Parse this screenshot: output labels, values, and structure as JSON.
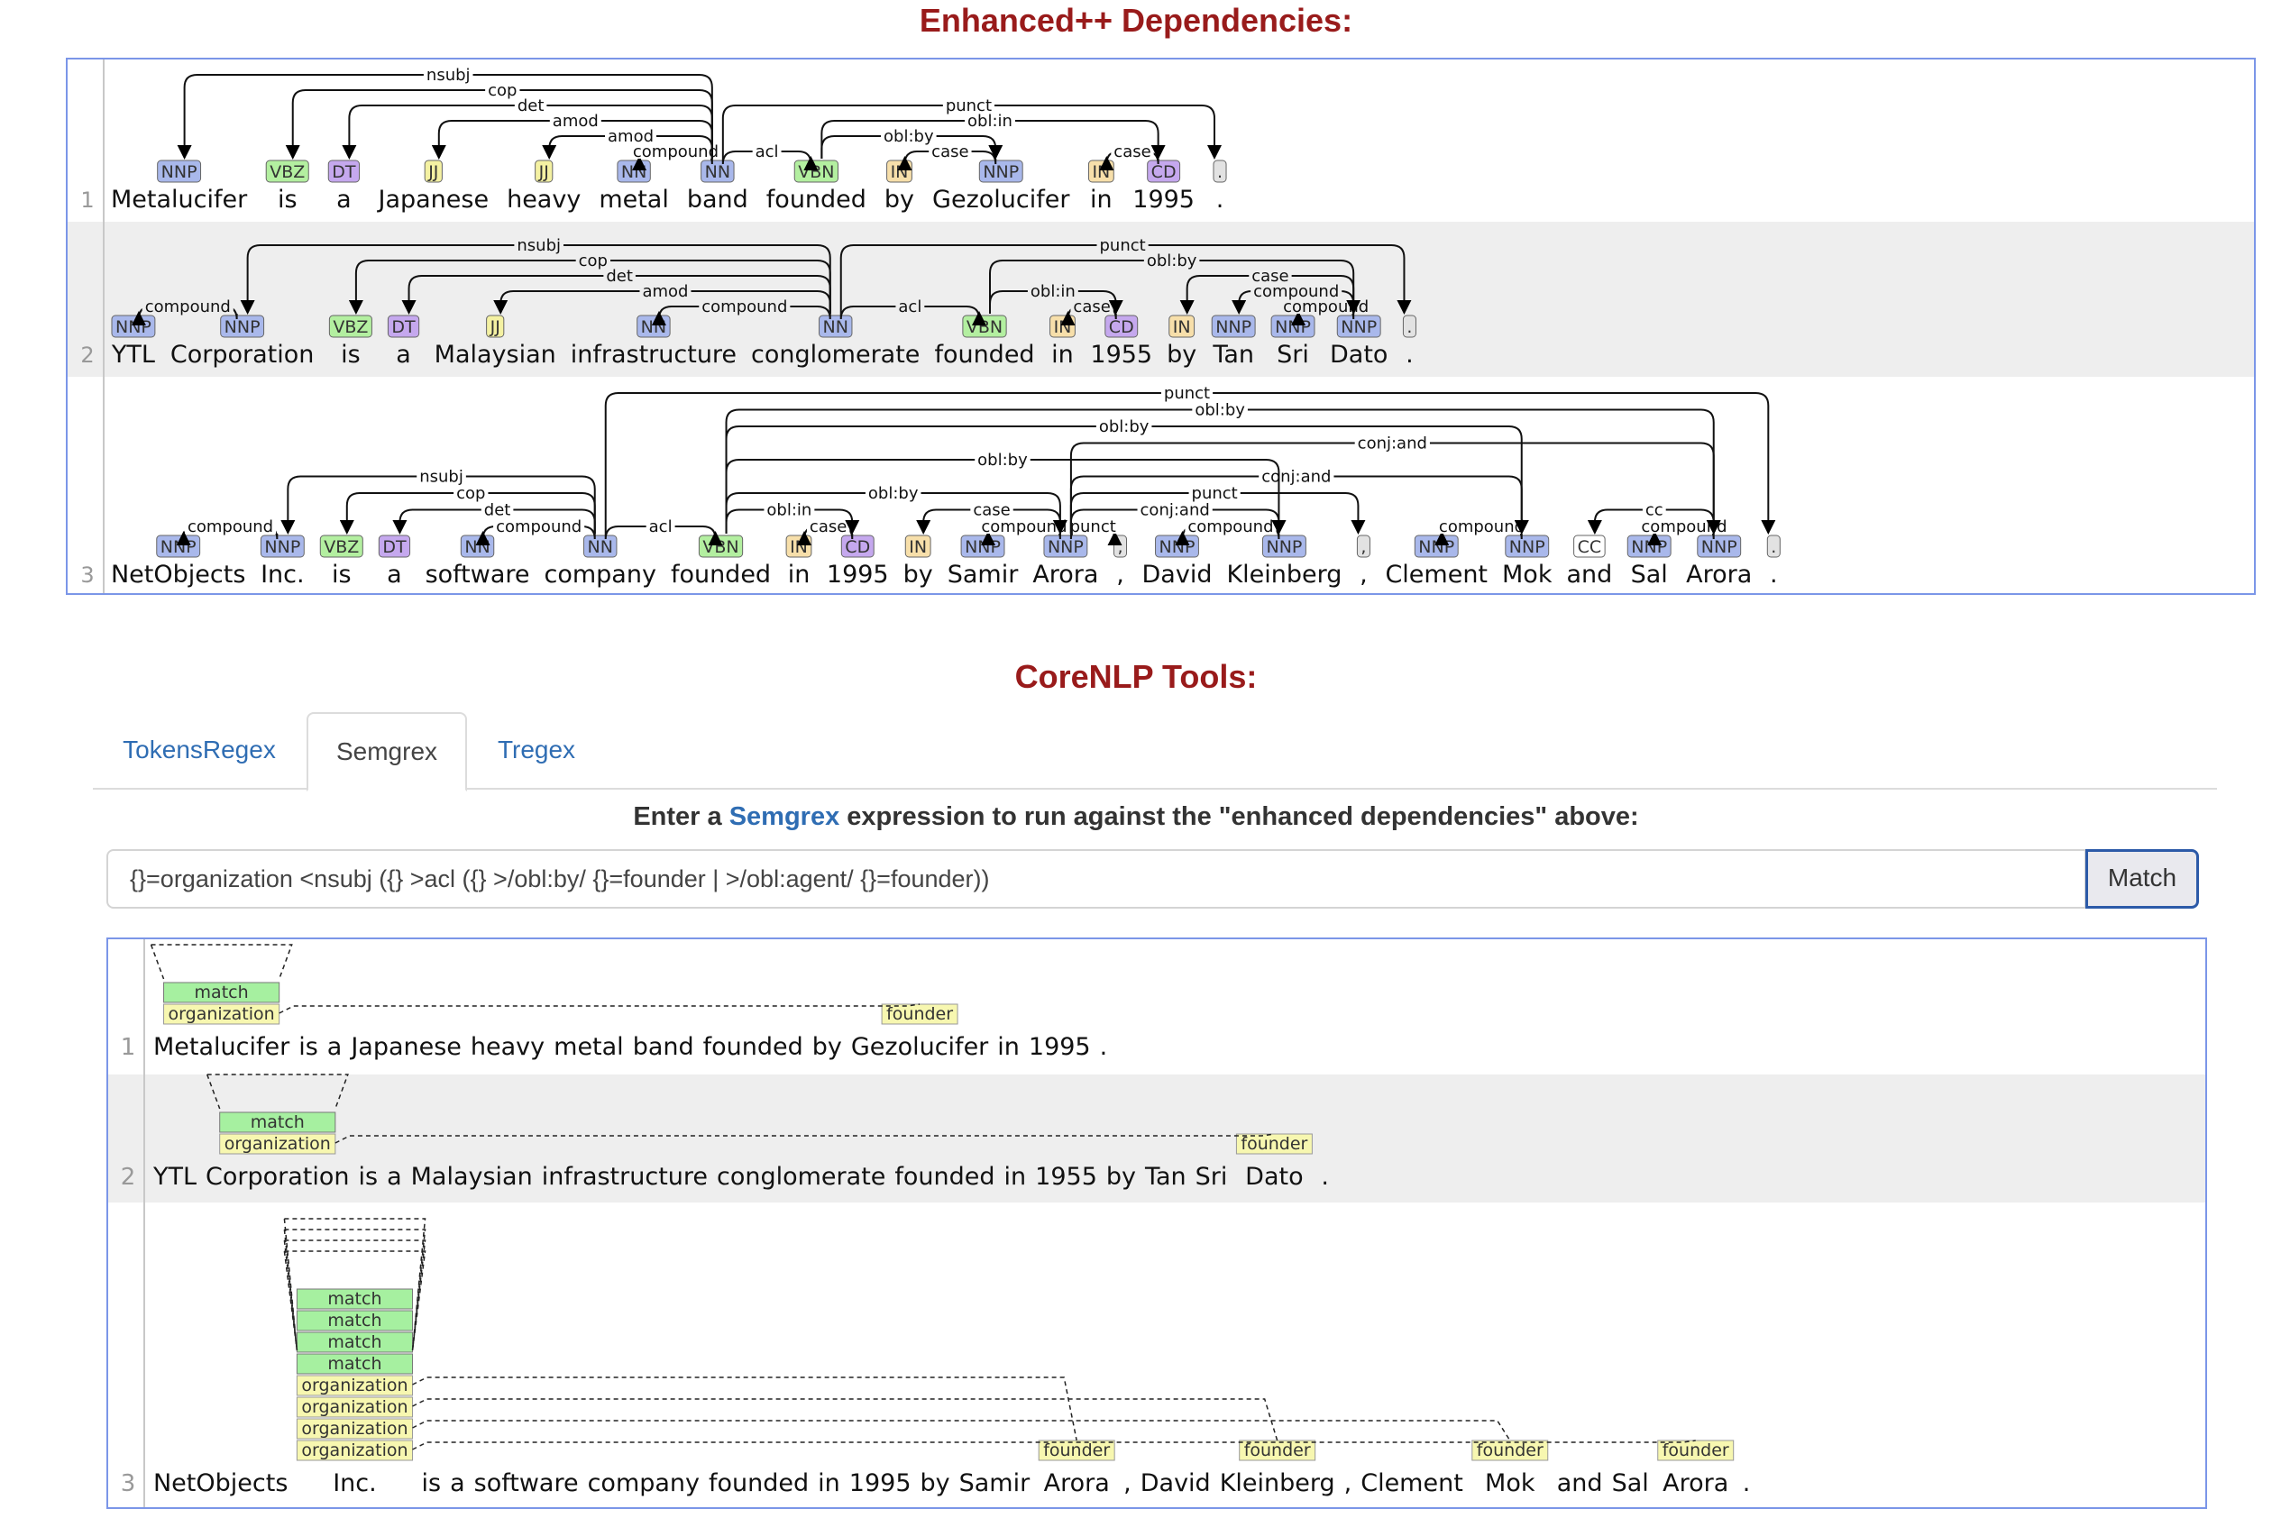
{
  "headings": {
    "deps": "Enhanced++ Dependencies:",
    "tools": "CoreNLP Tools:"
  },
  "tabs": [
    "TokensRegex",
    "Semgrex",
    "Tregex"
  ],
  "active_tab": "Semgrex",
  "prompt": {
    "before": "Enter a ",
    "link": "Semgrex",
    "after": " expression to run against the \"enhanced dependencies\" above:"
  },
  "query": "{}=organization <nsubj ({} >acl ({} >/obl:by/ {}=founder | >/obl:agent/ {}=founder))",
  "match_button": "Match",
  "colors": {
    "NNP": "#a9b8eb",
    "NN": "#a9b8eb",
    "VBZ": "#b3efa0",
    "VBN": "#b3efa0",
    "DT": "#c5a8ee",
    "CD": "#c5a8ee",
    "JJ": "#f4f1a2",
    "IN": "#f7dfaa",
    "CC": "#ffffff",
    "PUNCT": "#e2e2e2",
    "match": "#a6f0a0",
    "label": "#f7f7b0",
    "heading": "#991b1b",
    "link": "#2f6db3",
    "panel_border": "#7b96e8",
    "row_alt": "#eeeeee"
  },
  "dependencies": [
    {
      "num": "1",
      "tokens": [
        {
          "w": "Metalucifer",
          "t": "NNP"
        },
        {
          "w": "is",
          "t": "VBZ"
        },
        {
          "w": "a",
          "t": "DT"
        },
        {
          "w": "Japanese",
          "t": "JJ"
        },
        {
          "w": "heavy",
          "t": "JJ"
        },
        {
          "w": "metal",
          "t": "NN"
        },
        {
          "w": "band",
          "t": "NN"
        },
        {
          "w": "founded",
          "t": "VBN"
        },
        {
          "w": "by",
          "t": "IN"
        },
        {
          "w": "Gezolucifer",
          "t": "NNP"
        },
        {
          "w": "in",
          "t": "IN"
        },
        {
          "w": "1995",
          "t": "CD"
        },
        {
          "w": ".",
          "t": "."
        }
      ],
      "arcs": [
        {
          "from": 6,
          "to": 0,
          "label": "nsubj"
        },
        {
          "from": 6,
          "to": 1,
          "label": "cop"
        },
        {
          "from": 6,
          "to": 2,
          "label": "det"
        },
        {
          "from": 6,
          "to": 3,
          "label": "amod"
        },
        {
          "from": 6,
          "to": 4,
          "label": "amod"
        },
        {
          "from": 6,
          "to": 5,
          "label": "compound"
        },
        {
          "from": 6,
          "to": 7,
          "label": "acl"
        },
        {
          "from": 6,
          "to": 12,
          "label": "punct"
        },
        {
          "from": 7,
          "to": 9,
          "label": "obl:by"
        },
        {
          "from": 7,
          "to": 11,
          "label": "obl:in"
        },
        {
          "from": 9,
          "to": 8,
          "label": "case"
        },
        {
          "from": 11,
          "to": 10,
          "label": "case"
        }
      ]
    },
    {
      "num": "2",
      "tokens": [
        {
          "w": "YTL",
          "t": "NNP"
        },
        {
          "w": "Corporation",
          "t": "NNP"
        },
        {
          "w": "is",
          "t": "VBZ"
        },
        {
          "w": "a",
          "t": "DT"
        },
        {
          "w": "Malaysian",
          "t": "JJ"
        },
        {
          "w": "infrastructure",
          "t": "NN"
        },
        {
          "w": "conglomerate",
          "t": "NN"
        },
        {
          "w": "founded",
          "t": "VBN"
        },
        {
          "w": "in",
          "t": "IN"
        },
        {
          "w": "1955",
          "t": "CD"
        },
        {
          "w": "by",
          "t": "IN"
        },
        {
          "w": "Tan",
          "t": "NNP"
        },
        {
          "w": "Sri",
          "t": "NNP"
        },
        {
          "w": "Dato",
          "t": "NNP"
        },
        {
          "w": ".",
          "t": "."
        }
      ],
      "arcs": [
        {
          "from": 1,
          "to": 0,
          "label": "compound"
        },
        {
          "from": 6,
          "to": 1,
          "label": "nsubj"
        },
        {
          "from": 6,
          "to": 2,
          "label": "cop"
        },
        {
          "from": 6,
          "to": 3,
          "label": "det"
        },
        {
          "from": 6,
          "to": 4,
          "label": "amod"
        },
        {
          "from": 6,
          "to": 5,
          "label": "compound"
        },
        {
          "from": 6,
          "to": 7,
          "label": "acl"
        },
        {
          "from": 6,
          "to": 14,
          "label": "punct"
        },
        {
          "from": 7,
          "to": 9,
          "label": "obl:in"
        },
        {
          "from": 7,
          "to": 13,
          "label": "obl:by"
        },
        {
          "from": 9,
          "to": 8,
          "label": "case"
        },
        {
          "from": 13,
          "to": 10,
          "label": "case"
        },
        {
          "from": 13,
          "to": 11,
          "label": "compound"
        },
        {
          "from": 13,
          "to": 12,
          "label": "compound"
        }
      ]
    },
    {
      "num": "3",
      "tokens": [
        {
          "w": "NetObjects",
          "t": "NNP"
        },
        {
          "w": "Inc.",
          "t": "NNP"
        },
        {
          "w": "is",
          "t": "VBZ"
        },
        {
          "w": "a",
          "t": "DT"
        },
        {
          "w": "software",
          "t": "NN"
        },
        {
          "w": "company",
          "t": "NN"
        },
        {
          "w": "founded",
          "t": "VBN"
        },
        {
          "w": "in",
          "t": "IN"
        },
        {
          "w": "1995",
          "t": "CD"
        },
        {
          "w": "by",
          "t": "IN"
        },
        {
          "w": "Samir",
          "t": "NNP"
        },
        {
          "w": "Arora",
          "t": "NNP"
        },
        {
          "w": ",",
          "t": ","
        },
        {
          "w": "David",
          "t": "NNP"
        },
        {
          "w": "Kleinberg",
          "t": "NNP"
        },
        {
          "w": ",",
          "t": ","
        },
        {
          "w": "Clement",
          "t": "NNP"
        },
        {
          "w": "Mok",
          "t": "NNP"
        },
        {
          "w": "and",
          "t": "CC"
        },
        {
          "w": "Sal",
          "t": "NNP"
        },
        {
          "w": "Arora",
          "t": "NNP"
        },
        {
          "w": ".",
          "t": "."
        }
      ],
      "arcs": [
        {
          "from": 1,
          "to": 0,
          "label": "compound"
        },
        {
          "from": 5,
          "to": 1,
          "label": "nsubj"
        },
        {
          "from": 5,
          "to": 2,
          "label": "cop"
        },
        {
          "from": 5,
          "to": 3,
          "label": "det"
        },
        {
          "from": 5,
          "to": 4,
          "label": "compound"
        },
        {
          "from": 5,
          "to": 6,
          "label": "acl"
        },
        {
          "from": 5,
          "to": 21,
          "label": "punct"
        },
        {
          "from": 6,
          "to": 8,
          "label": "obl:in"
        },
        {
          "from": 8,
          "to": 7,
          "label": "case"
        },
        {
          "from": 6,
          "to": 11,
          "label": "obl:by"
        },
        {
          "from": 6,
          "to": 14,
          "label": "obl:by"
        },
        {
          "from": 6,
          "to": 17,
          "label": "obl:by"
        },
        {
          "from": 6,
          "to": 20,
          "label": "obl:by"
        },
        {
          "from": 11,
          "to": 9,
          "label": "case"
        },
        {
          "from": 11,
          "to": 10,
          "label": "compound"
        },
        {
          "from": 11,
          "to": 12,
          "label": "punct"
        },
        {
          "from": 11,
          "to": 14,
          "label": "conj:and"
        },
        {
          "from": 11,
          "to": 15,
          "label": "punct"
        },
        {
          "from": 11,
          "to": 17,
          "label": "conj:and"
        },
        {
          "from": 11,
          "to": 20,
          "label": "conj:and"
        },
        {
          "from": 14,
          "to": 13,
          "label": "compound"
        },
        {
          "from": 17,
          "to": 16,
          "label": "compound"
        },
        {
          "from": 20,
          "to": 18,
          "label": "cc"
        },
        {
          "from": 20,
          "to": 19,
          "label": "compound"
        }
      ]
    }
  ],
  "semgrex_results": [
    {
      "num": "1",
      "tokens": [
        "Metalucifer",
        "is",
        "a",
        "Japanese",
        "heavy",
        "metal",
        "band",
        "founded",
        "by",
        "Gezolucifer",
        "in",
        "1995",
        "."
      ],
      "org": 0,
      "matches": 1,
      "founders": [
        9
      ],
      "match_label": "match",
      "org_label": "organization",
      "founder_label": "founder"
    },
    {
      "num": "2",
      "tokens": [
        "YTL",
        "Corporation",
        "is",
        "a",
        "Malaysian",
        "infrastructure",
        "conglomerate",
        "founded",
        "in",
        "1955",
        "by",
        "Tan",
        "Sri",
        "Dato",
        "."
      ],
      "org": 1,
      "matches": 1,
      "founders": [
        13
      ],
      "match_label": "match",
      "org_label": "organization",
      "founder_label": "founder"
    },
    {
      "num": "3",
      "tokens": [
        "NetObjects",
        "Inc.",
        "is",
        "a",
        "software",
        "company",
        "founded",
        "in",
        "1995",
        "by",
        "Samir",
        "Arora",
        ",",
        "David",
        "Kleinberg",
        ",",
        "Clement",
        "Mok",
        "and",
        "Sal",
        "Arora",
        "."
      ],
      "org": 1,
      "matches": 4,
      "founders": [
        11,
        14,
        17,
        20
      ],
      "match_label": "match",
      "org_label": "organization",
      "founder_label": "founder"
    }
  ]
}
